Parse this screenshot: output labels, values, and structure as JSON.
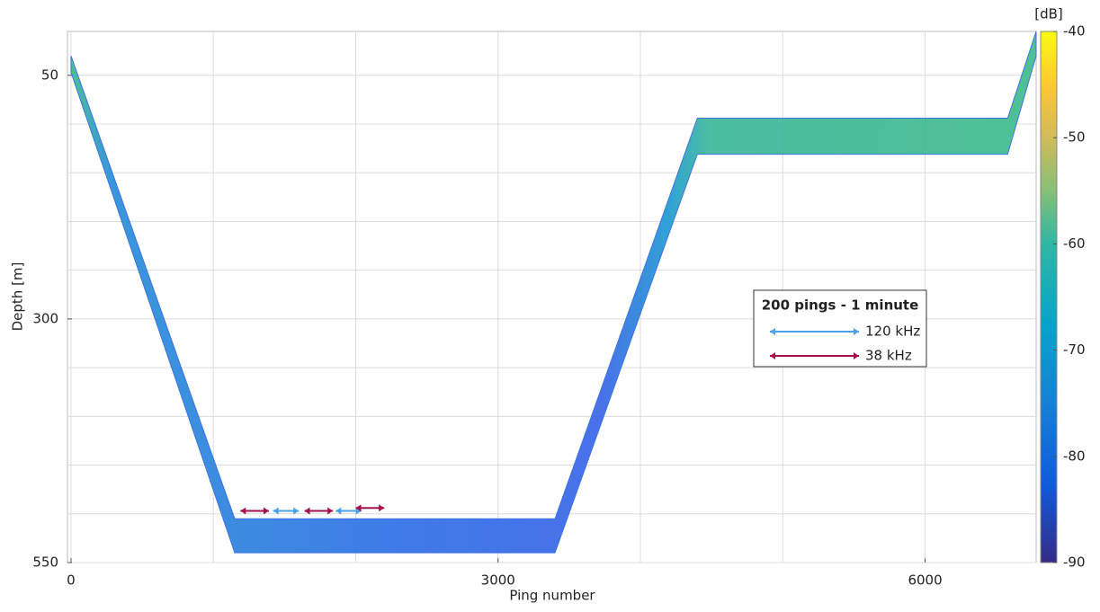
{
  "chart_data": {
    "type": "echogram",
    "xlabel": "Ping number",
    "ylabel": "Depth [m]",
    "xlim": [
      -25,
      6780
    ],
    "ylim": [
      5,
      550
    ],
    "y_reversed": true,
    "xticks": [
      0,
      3000,
      6000
    ],
    "yticks": [
      50,
      300,
      550
    ],
    "xgrid": [
      0,
      1000,
      2000,
      3000,
      4000,
      5000,
      6000
    ],
    "ygrid": [
      50,
      100,
      150,
      200,
      250,
      300,
      350,
      400,
      450,
      500,
      550
    ],
    "x": [
      0,
      1150,
      3400,
      4400,
      6580,
      6780
    ],
    "top": [
      30,
      505,
      505,
      94,
      94,
      5
    ],
    "bottom": [
      47,
      540,
      540,
      131,
      131,
      30
    ],
    "pulse_arrows": [
      {
        "start": 1190,
        "end": 1390,
        "depth": 497,
        "color": "#a3124f"
      },
      {
        "start": 1420,
        "end": 1600,
        "depth": 497,
        "color": "#4aa3e8"
      },
      {
        "start": 1640,
        "end": 1840,
        "depth": 497,
        "color": "#a3124f"
      },
      {
        "start": 1860,
        "end": 2040,
        "depth": 497,
        "color": "#4aa3e8"
      },
      {
        "start": 2000,
        "end": 2200,
        "depth": 494,
        "color": "#a3124f"
      }
    ],
    "legend": {
      "title": "200 pings - 1 minute",
      "entries": [
        {
          "name": "120 kHz",
          "color": "#4aa3e8"
        },
        {
          "name": "38 kHz",
          "color": "#a3124f"
        }
      ]
    },
    "colorbar": {
      "label": "[dB]",
      "lim": [
        -90,
        -40
      ],
      "ticks": [
        -40,
        -50,
        -60,
        -70,
        -80,
        -90
      ]
    }
  }
}
